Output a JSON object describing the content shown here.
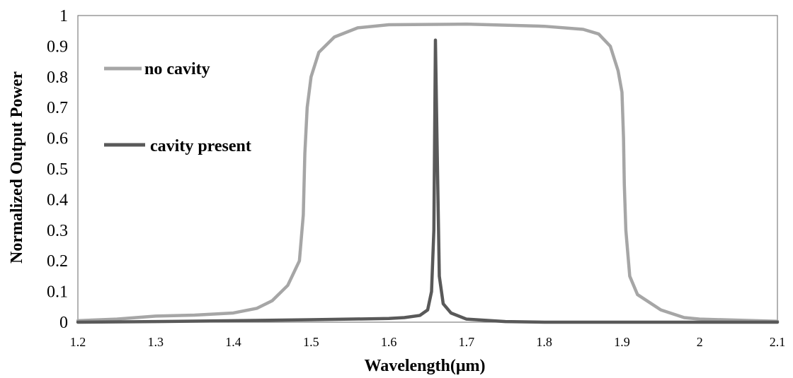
{
  "chart_data": {
    "type": "line",
    "xlabel": "Wavelength(μm)",
    "ylabel": "Normalized Output Power",
    "xlim": [
      1.2,
      2.1
    ],
    "ylim": [
      0,
      1
    ],
    "x_ticks": [
      "1.2",
      "1.3",
      "1.4",
      "1.5",
      "1.6",
      "1.7",
      "1.8",
      "1.9",
      "2",
      "2.1"
    ],
    "y_ticks": [
      "0",
      "0.1",
      "0.2",
      "0.3",
      "0.4",
      "0.5",
      "0.6",
      "0.7",
      "0.8",
      "0.9",
      "1"
    ],
    "grid": false,
    "legend_position": "left",
    "series": [
      {
        "name": "no cavity",
        "color": "#a6a6a6",
        "points": [
          [
            1.2,
            0.005
          ],
          [
            1.25,
            0.01
          ],
          [
            1.3,
            0.02
          ],
          [
            1.35,
            0.023
          ],
          [
            1.4,
            0.03
          ],
          [
            1.43,
            0.045
          ],
          [
            1.45,
            0.07
          ],
          [
            1.47,
            0.12
          ],
          [
            1.485,
            0.2
          ],
          [
            1.49,
            0.35
          ],
          [
            1.492,
            0.55
          ],
          [
            1.495,
            0.7
          ],
          [
            1.5,
            0.8
          ],
          [
            1.51,
            0.88
          ],
          [
            1.53,
            0.93
          ],
          [
            1.56,
            0.96
          ],
          [
            1.6,
            0.97
          ],
          [
            1.7,
            0.972
          ],
          [
            1.8,
            0.965
          ],
          [
            1.85,
            0.955
          ],
          [
            1.87,
            0.94
          ],
          [
            1.885,
            0.9
          ],
          [
            1.895,
            0.82
          ],
          [
            1.9,
            0.75
          ],
          [
            1.902,
            0.6
          ],
          [
            1.903,
            0.45
          ],
          [
            1.905,
            0.3
          ],
          [
            1.91,
            0.15
          ],
          [
            1.92,
            0.09
          ],
          [
            1.95,
            0.04
          ],
          [
            1.98,
            0.015
          ],
          [
            2.0,
            0.01
          ],
          [
            2.1,
            0.003
          ]
        ]
      },
      {
        "name": "cavity present",
        "color": "#595959",
        "points": [
          [
            1.2,
            0.0
          ],
          [
            1.3,
            0.002
          ],
          [
            1.4,
            0.005
          ],
          [
            1.5,
            0.008
          ],
          [
            1.6,
            0.012
          ],
          [
            1.62,
            0.015
          ],
          [
            1.64,
            0.022
          ],
          [
            1.65,
            0.04
          ],
          [
            1.655,
            0.1
          ],
          [
            1.658,
            0.3
          ],
          [
            1.66,
            0.92
          ],
          [
            1.662,
            0.6
          ],
          [
            1.665,
            0.15
          ],
          [
            1.67,
            0.06
          ],
          [
            1.68,
            0.03
          ],
          [
            1.7,
            0.01
          ],
          [
            1.75,
            0.002
          ],
          [
            1.8,
            0.0
          ],
          [
            2.1,
            0.0
          ]
        ]
      }
    ]
  }
}
